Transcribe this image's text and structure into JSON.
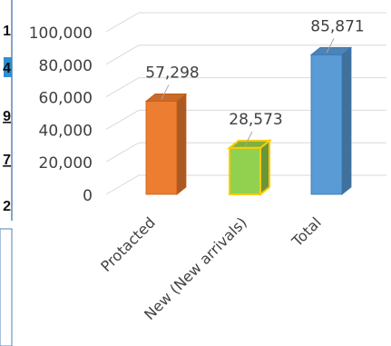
{
  "left_panel": {
    "fragments": [
      "1",
      "4",
      "9",
      "7",
      "2"
    ]
  },
  "chart_data": {
    "type": "bar",
    "categories": [
      "Protacted",
      "New (New arrivals)",
      "Total"
    ],
    "values": [
      57298,
      28573,
      85871
    ],
    "data_labels": [
      "57,298",
      "28,573",
      "85,871"
    ],
    "ylim": [
      0,
      100000
    ],
    "y_ticks": [
      "0",
      "20,000",
      "40,000",
      "60,000",
      "80,000",
      "100,000"
    ],
    "grid": true,
    "style": "3d-column",
    "colors": [
      "#ed7d31",
      "#92d050",
      "#5b9bd5"
    ],
    "edge_colors": [
      "#c55a11",
      "#ffcc00",
      "#2e75b6"
    ]
  }
}
